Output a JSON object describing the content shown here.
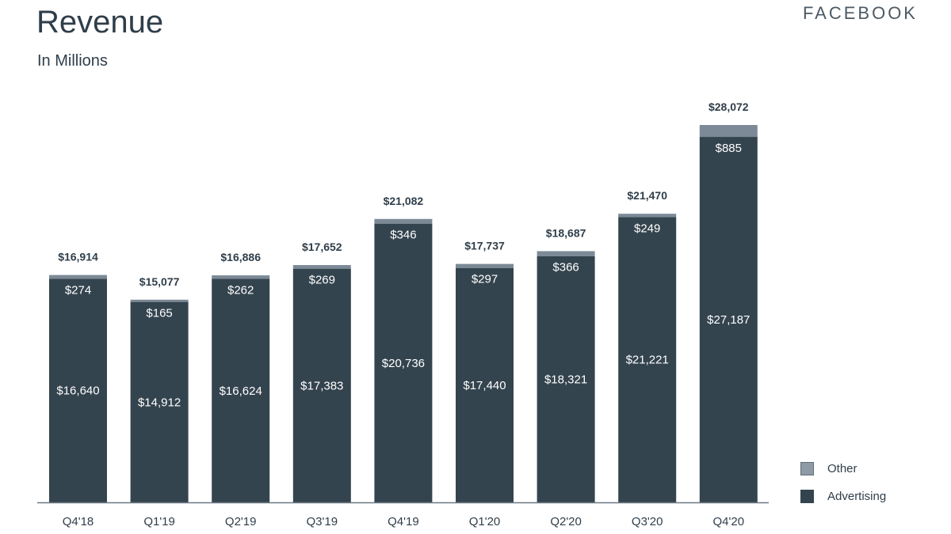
{
  "header": {
    "title": "Revenue",
    "subtitle": "In Millions",
    "brand": "FACEBOOK"
  },
  "colors": {
    "advertising": "#34444f",
    "other": "#7c8a97",
    "axis": "#6b7882",
    "text": "#2f3e4a"
  },
  "legend": {
    "items": [
      {
        "label": "Other",
        "color": "#8e9aa5"
      },
      {
        "label": "Advertising",
        "color": "#34444f"
      }
    ]
  },
  "chart_data": {
    "type": "bar",
    "stacked": true,
    "categories": [
      "Q4'18",
      "Q1'19",
      "Q2'19",
      "Q3'19",
      "Q4'19",
      "Q1'20",
      "Q2'20",
      "Q3'20",
      "Q4'20"
    ],
    "series": [
      {
        "name": "Advertising",
        "values": [
          16640,
          14912,
          16624,
          17383,
          20736,
          17440,
          18321,
          21221,
          27187
        ],
        "labels": [
          "$16,640",
          "$14,912",
          "$16,624",
          "$17,383",
          "$20,736",
          "$17,440",
          "$18,321",
          "$21,221",
          "$27,187"
        ]
      },
      {
        "name": "Other",
        "values": [
          274,
          165,
          262,
          269,
          346,
          297,
          366,
          249,
          885
        ],
        "labels": [
          "$274",
          "$165",
          "$262",
          "$269",
          "$346",
          "$297",
          "$366",
          "$249",
          "$885"
        ]
      }
    ],
    "totals": [
      16914,
      15077,
      16886,
      17652,
      21082,
      17737,
      18687,
      21470,
      28072
    ],
    "total_labels": [
      "$16,914",
      "$15,077",
      "$16,886",
      "$17,652",
      "$21,082",
      "$17,737",
      "$18,687",
      "$21,470",
      "$28,072"
    ],
    "ylim": [
      0,
      30000
    ],
    "grid": false,
    "legend_position": "bottom-right"
  }
}
